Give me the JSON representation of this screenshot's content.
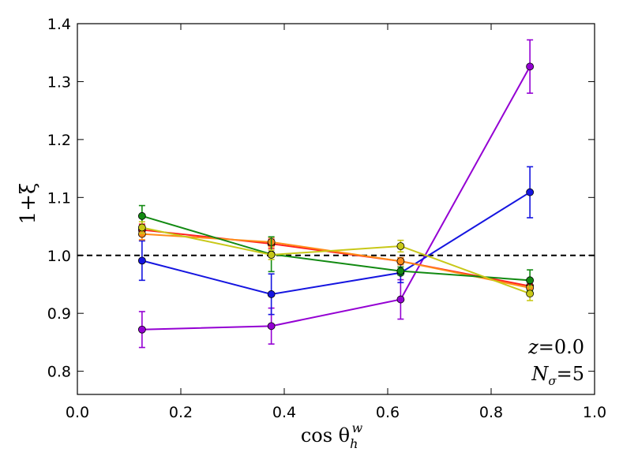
{
  "chart_data": {
    "type": "line",
    "title": "",
    "xlabel": "cos θ_h^w",
    "ylabel": "1+ξ",
    "xlim": [
      0.0,
      1.0
    ],
    "ylim": [
      0.76,
      1.4
    ],
    "x_ticks": [
      "0.0",
      "0.2",
      "0.4",
      "0.6",
      "0.8",
      "1.0"
    ],
    "y_ticks": [
      "0.8",
      "0.9",
      "1.0",
      "1.1",
      "1.2",
      "1.3",
      "1.4"
    ],
    "reference_line": {
      "y": 1.0,
      "style": "dashed",
      "color": "#000000"
    },
    "x": [
      0.125,
      0.375,
      0.625,
      0.875
    ],
    "series": [
      {
        "name": "purple",
        "color": "#9400d3",
        "values": [
          0.872,
          0.878,
          0.924,
          1.326
        ],
        "errors": [
          0.031,
          0.031,
          0.034,
          0.046
        ]
      },
      {
        "name": "blue",
        "color": "#1515e0",
        "values": [
          0.991,
          0.933,
          0.97,
          1.109
        ],
        "errors": [
          0.034,
          0.035,
          0.017,
          0.044
        ]
      },
      {
        "name": "red",
        "color": "#ff2020",
        "values": [
          1.044,
          1.02,
          0.99,
          0.947
        ],
        "errors": [
          0.01,
          0.008,
          0.006,
          0.012
        ]
      },
      {
        "name": "orange",
        "color": "#ff8c1a",
        "values": [
          1.037,
          1.023,
          0.99,
          0.944
        ],
        "errors": [
          0.01,
          0.008,
          0.006,
          0.012
        ]
      },
      {
        "name": "green",
        "color": "#128a12",
        "values": [
          1.068,
          1.002,
          0.973,
          0.957
        ],
        "errors": [
          0.018,
          0.03,
          0.007,
          0.018
        ]
      },
      {
        "name": "yellow-green",
        "color": "#c8c818",
        "values": [
          1.048,
          1.001,
          1.016,
          0.934
        ],
        "errors": [
          0.01,
          0.008,
          0.01,
          0.012
        ]
      }
    ],
    "annotations": {
      "z_label": "z",
      "z_eq": "=",
      "z_value": "0.0",
      "n_label": "N",
      "n_sub": "σ",
      "n_eq": "=",
      "n_value": "5"
    },
    "grid": false,
    "legend": "none"
  }
}
